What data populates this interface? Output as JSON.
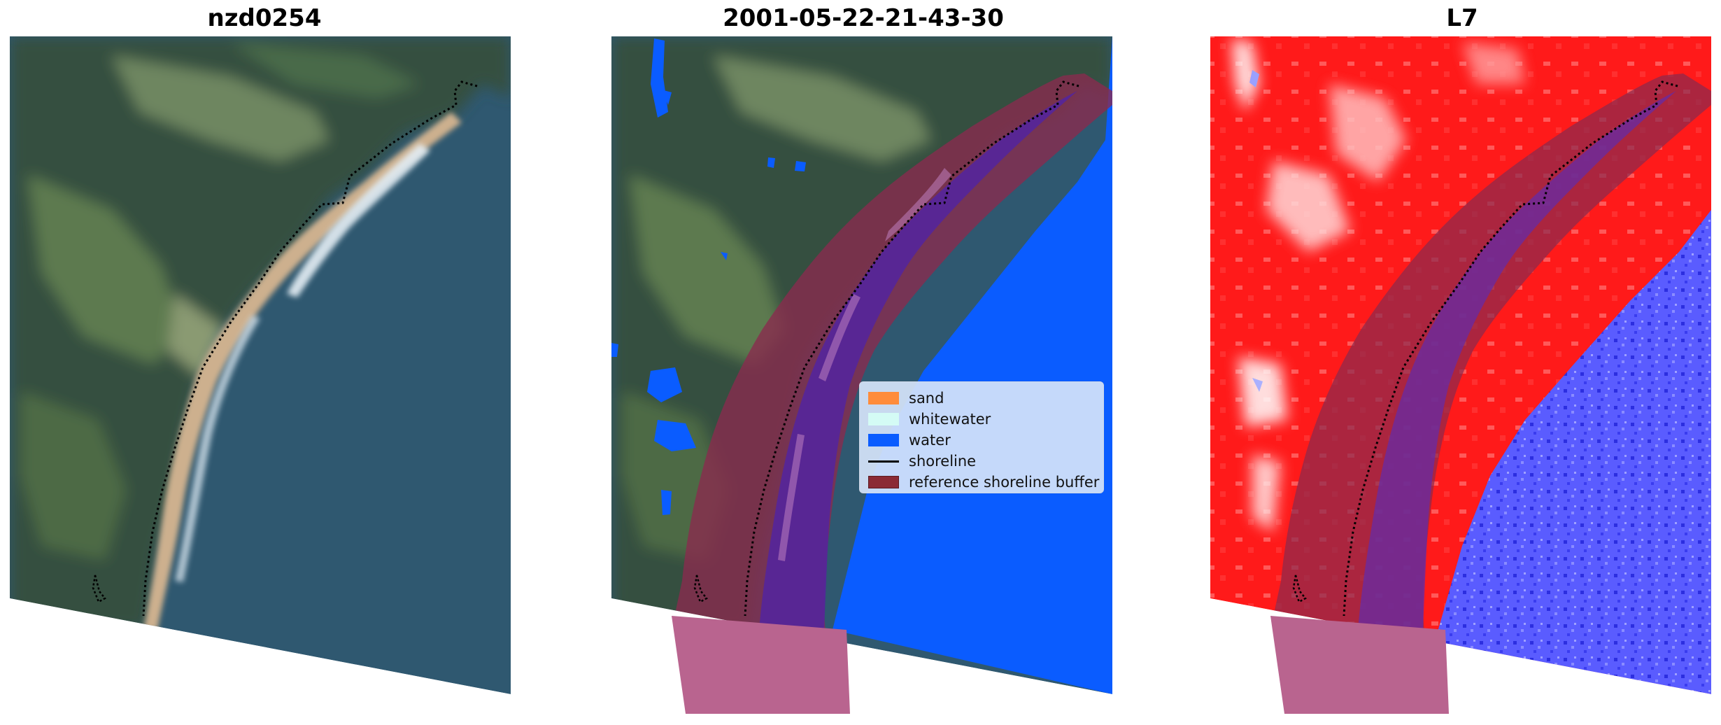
{
  "panels": [
    {
      "title": "nzd0254"
    },
    {
      "title": "2001-05-22-21-43-30"
    },
    {
      "title": "L7"
    }
  ],
  "legend": {
    "items": [
      {
        "label": "sand",
        "kind": "patch",
        "color": "#ff8c3a"
      },
      {
        "label": "whitewater",
        "kind": "patch",
        "color": "#d4fbf5"
      },
      {
        "label": "water",
        "kind": "patch",
        "color": "#0a5cff"
      },
      {
        "label": "shoreline",
        "kind": "line",
        "color": "#000000"
      },
      {
        "label": "reference shoreline buffer",
        "kind": "patch",
        "color": "#8b2a35"
      }
    ]
  },
  "colors": {
    "ocean": "#2f5870",
    "land_dark": "#34503f",
    "land_green": "#5d7a4f",
    "beach": "#cdb08e",
    "surf": "#e4eef4",
    "water_class": "#0a5cff",
    "buffer": "#8b2a4e",
    "buffer_sea": "#56259a",
    "index_land": "#ff1010",
    "index_water": "#4a4dff"
  }
}
